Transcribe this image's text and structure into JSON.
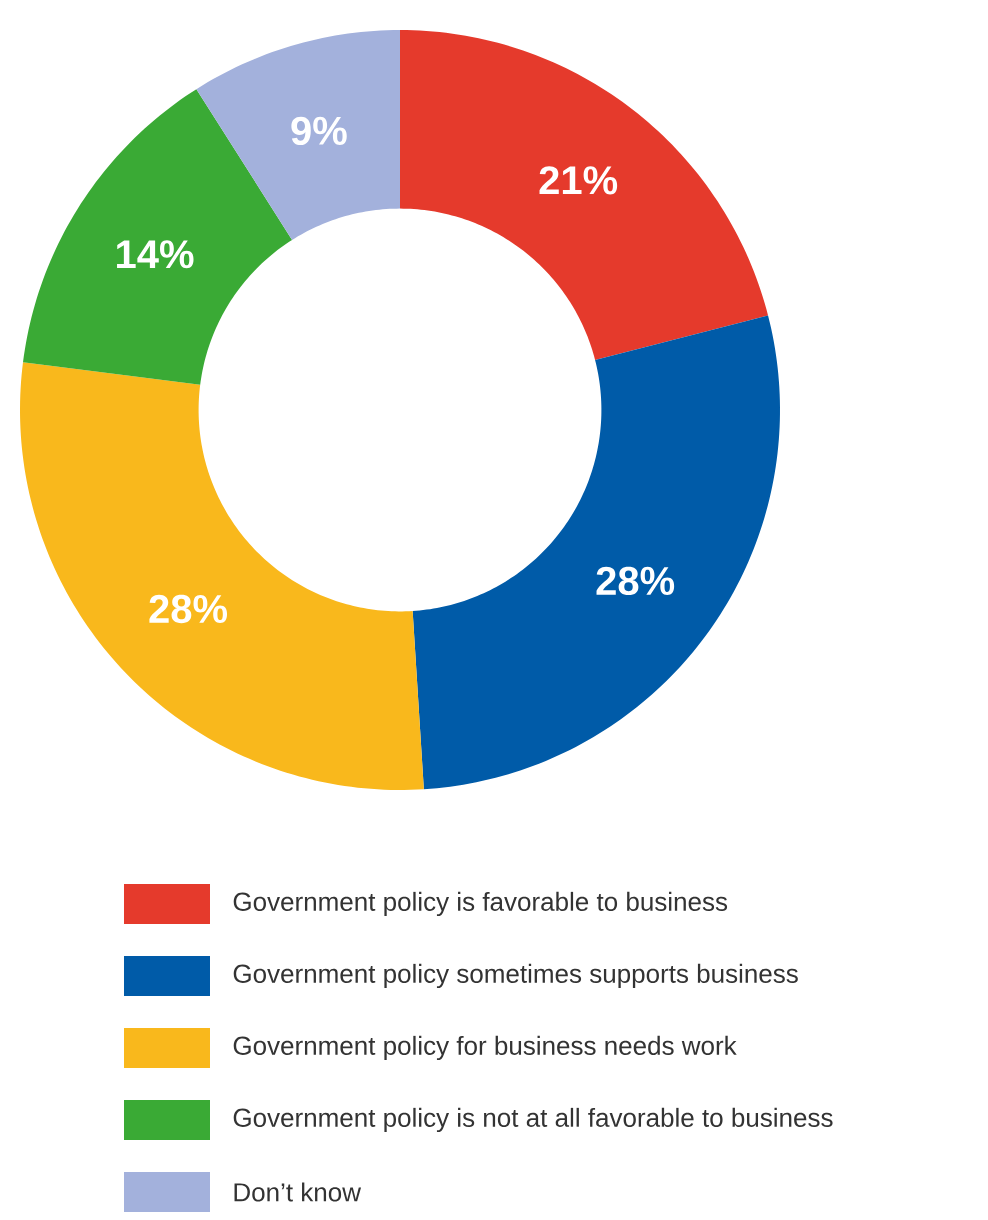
{
  "chart_data": {
    "type": "donut",
    "categories": [
      "Government policy is favorable to business",
      "Government policy sometimes supports business",
      "Government policy for business needs work",
      "Government policy is not at all favorable to business",
      "Don’t know"
    ],
    "values": [
      21,
      28,
      28,
      14,
      9
    ],
    "value_labels": [
      "21%",
      "28%",
      "28%",
      "14%",
      "9%"
    ],
    "colors": [
      "#e53a2c",
      "#005ba8",
      "#f9b81c",
      "#3aaa35",
      "#a3b1dc"
    ],
    "legend": "bottom"
  }
}
